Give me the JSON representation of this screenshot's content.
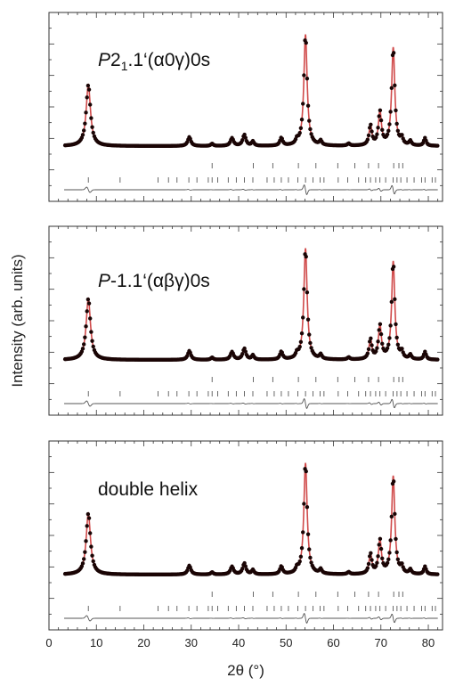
{
  "chart_data": {
    "type": "line",
    "xlabel": "2θ (°)",
    "ylabel": "Intensity (arb. units)",
    "xlim": [
      0,
      83
    ],
    "x_ticks": [
      0,
      10,
      20,
      30,
      40,
      50,
      60,
      70,
      80
    ],
    "y_ticks_shown": false,
    "colors": {
      "observed": "#1a0505",
      "calculated": "#d04a4a",
      "difference": "#555555",
      "reflections": "#444444"
    },
    "peaks": [
      {
        "x": 8.3,
        "h": 0.55,
        "w": 0.55
      },
      {
        "x": 29.6,
        "h": 0.08,
        "w": 0.4
      },
      {
        "x": 34.4,
        "h": 0.02,
        "w": 0.3
      },
      {
        "x": 38.6,
        "h": 0.07,
        "w": 0.4
      },
      {
        "x": 41.2,
        "h": 0.1,
        "w": 0.4
      },
      {
        "x": 43.0,
        "h": 0.04,
        "w": 0.3
      },
      {
        "x": 49.0,
        "h": 0.07,
        "w": 0.35
      },
      {
        "x": 52.3,
        "h": 0.04,
        "w": 0.3
      },
      {
        "x": 54.1,
        "h": 1.0,
        "w": 0.42
      },
      {
        "x": 57.3,
        "h": 0.04,
        "w": 0.3
      },
      {
        "x": 63.2,
        "h": 0.02,
        "w": 0.3
      },
      {
        "x": 67.8,
        "h": 0.18,
        "w": 0.35
      },
      {
        "x": 69.8,
        "h": 0.3,
        "w": 0.38
      },
      {
        "x": 72.6,
        "h": 0.88,
        "w": 0.4
      },
      {
        "x": 74.4,
        "h": 0.06,
        "w": 0.3
      },
      {
        "x": 76.2,
        "h": 0.04,
        "w": 0.3
      },
      {
        "x": 79.3,
        "h": 0.07,
        "w": 0.3
      }
    ],
    "reflections_row1": [
      8.3,
      15.0,
      23.0,
      25.2,
      27.0,
      29.5,
      31.2,
      33.6,
      34.4,
      35.6,
      37.8,
      39.5,
      41.2,
      43.0,
      46.0,
      47.5,
      49.0,
      50.5,
      52.5,
      54.1,
      55.7,
      57.2,
      58.0,
      61.0,
      63.0,
      65.3,
      66.8,
      67.8,
      68.9,
      69.8,
      71.0,
      72.6,
      73.4,
      74.2,
      75.5,
      77.0,
      78.6,
      79.3,
      80.8,
      81.5
    ],
    "reflections_row2": [
      34.4,
      43.1,
      47.2,
      52.6,
      56.3,
      60.9,
      64.5,
      67.4,
      69.5,
      72.7,
      73.8,
      74.6
    ],
    "panels": [
      {
        "label_prefix": "P",
        "label_sub": "1",
        "label_rest": "2",
        "label_tail": ".1‘(α0γ)0s",
        "layout": "sub"
      },
      {
        "label_prefix": "P",
        "label_rest": "-1.1‘(αβγ)0s",
        "layout": "plain"
      },
      {
        "label_text": "double helix",
        "layout": "text"
      }
    ]
  }
}
